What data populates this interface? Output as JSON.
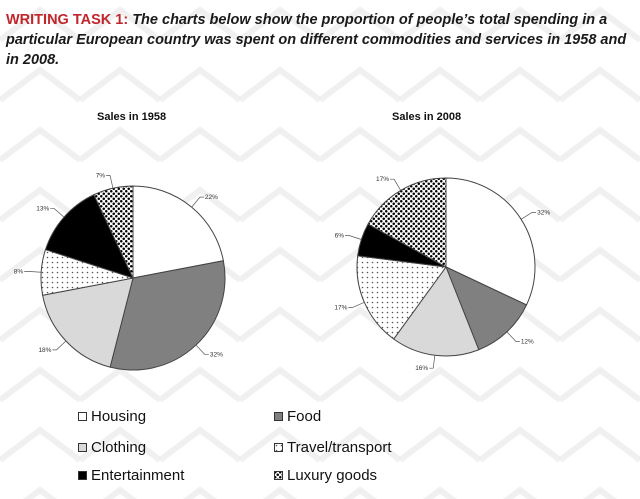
{
  "task": {
    "label": "WRITING TASK 1:",
    "text": "The charts below show the proportion of people’s total spending in a particular European country was spent on different commodities and services in 1958 and in 2008."
  },
  "chart_data": [
    {
      "type": "pie",
      "title": "Sales in 1958",
      "categories": [
        "Housing",
        "Food",
        "Clothing",
        "Travel/transport",
        "Entertainment",
        "Luxury goods"
      ],
      "values": [
        22,
        32,
        18,
        8,
        13,
        7
      ],
      "labels": [
        "22%",
        "32%",
        "18%",
        "8%",
        "13%",
        "7%"
      ]
    },
    {
      "type": "pie",
      "title": "Sales in 2008",
      "categories": [
        "Housing",
        "Food",
        "Clothing",
        "Travel/transport",
        "Entertainment",
        "Luxury goods"
      ],
      "values": [
        32,
        12,
        16,
        17,
        6,
        17
      ],
      "labels": [
        "32%",
        "12%",
        "16%",
        "17%",
        "6%",
        "17%"
      ]
    }
  ],
  "legend": [
    {
      "name": "Housing",
      "fill": "white"
    },
    {
      "name": "Food",
      "fill": "gray"
    },
    {
      "name": "Clothing",
      "fill": "lightgray"
    },
    {
      "name": "Travel/transport",
      "fill": "dots"
    },
    {
      "name": "Entertainment",
      "fill": "black"
    },
    {
      "name": "Luxury goods",
      "fill": "checker"
    }
  ],
  "colors": {
    "accent_red": "#c0262b",
    "food_gray": "#808080",
    "clothing_gray": "#d9d9d9",
    "entertainment": "#000000"
  }
}
